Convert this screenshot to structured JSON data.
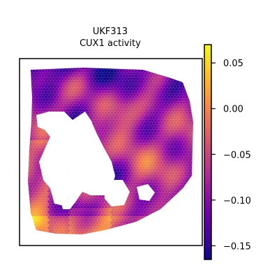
{
  "chart_data": {
    "type": "heatmap",
    "title_line1": "UKF313",
    "title_line2": "CUX1 activity",
    "xlabel": "",
    "ylabel": "",
    "colormap": "plasma",
    "colormap_colors": [
      "#0d0887",
      "#46039f",
      "#7201a8",
      "#9c179e",
      "#bd3786",
      "#d8576b",
      "#ed7953",
      "#fb9f3a",
      "#fdca26",
      "#f0f921"
    ],
    "colorbar": {
      "vmin": -0.165,
      "vmax": 0.07,
      "ticks": [
        0.05,
        0.0,
        -0.05,
        -0.1,
        -0.15
      ],
      "tick_labels": [
        "0.05",
        "0.00",
        "−0.05",
        "−0.10",
        "−0.15"
      ]
    },
    "grid": false,
    "legend": "colorbar-right",
    "value_range_shown": [
      -0.16,
      0.06
    ]
  }
}
